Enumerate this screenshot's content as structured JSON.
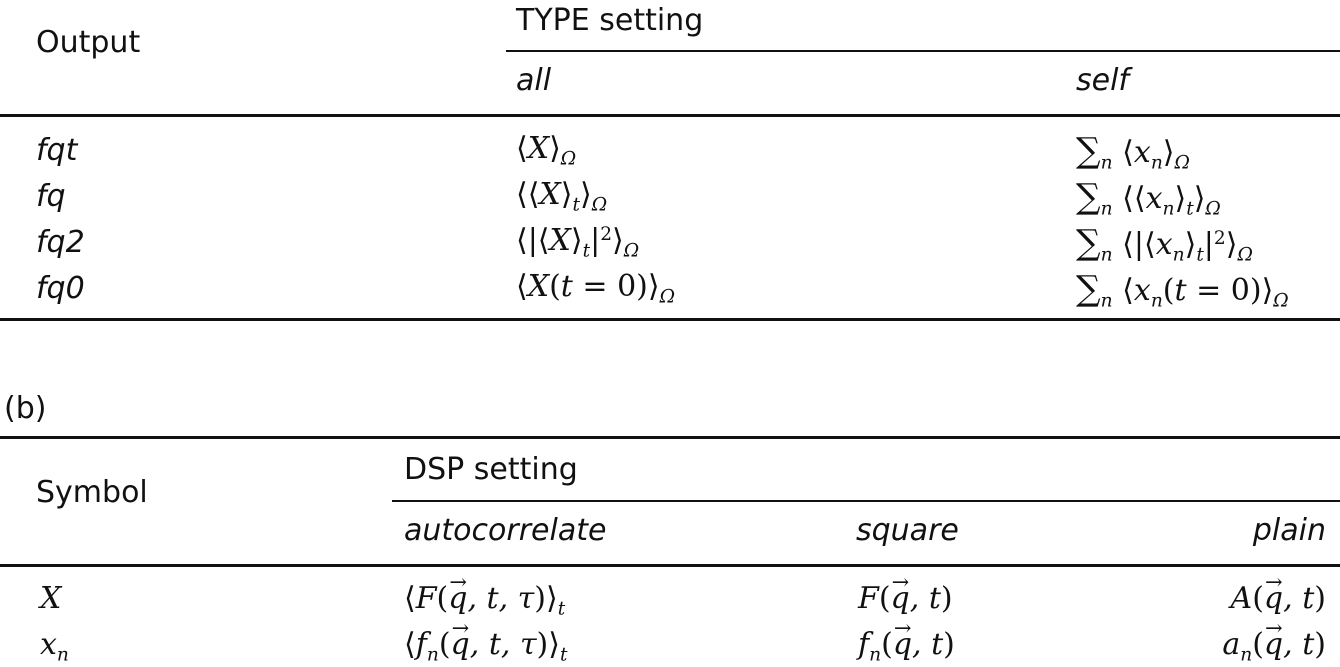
{
  "table_a": {
    "header": {
      "row_label": "Output",
      "group_label": "TYPE setting",
      "cols": [
        "all",
        "self"
      ]
    },
    "rows": [
      {
        "key": "fqt",
        "all": "⟨X⟩_Ω",
        "self": "∑_n ⟨x_n⟩_Ω"
      },
      {
        "key": "fq",
        "all": "⟨⟨X⟩_t⟩_Ω",
        "self": "∑_n ⟨⟨x_n⟩_t⟩_Ω"
      },
      {
        "key": "fq2",
        "all": "⟨|⟨X⟩_t|^2⟩_Ω",
        "self": "∑_n ⟨|⟨x_n⟩_t|^2⟩_Ω"
      },
      {
        "key": "fq0",
        "all": "⟨X(t = 0)⟩_Ω",
        "self": "∑_n ⟨x_n(t = 0)⟩_Ω"
      }
    ]
  },
  "table_b": {
    "caption": "(b)",
    "header": {
      "row_label": "Symbol",
      "group_label": "DSP setting",
      "cols": [
        "autocorrelate",
        "square",
        "plain"
      ]
    },
    "rows": [
      {
        "key": "X",
        "autocorrelate": "⟨F(q⃗, t, τ)⟩_t",
        "square": "F(q⃗, t)",
        "plain": "A(q⃗, t)"
      },
      {
        "key": "x_n",
        "autocorrelate": "⟨f_n(q⃗, t, τ)⟩_t",
        "square": "f_n(q⃗, t)",
        "plain": "a_n(q⃗, t)"
      }
    ]
  }
}
